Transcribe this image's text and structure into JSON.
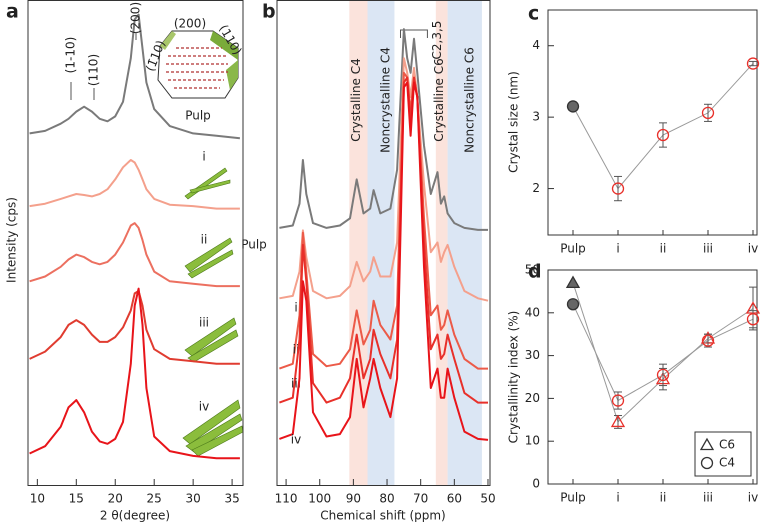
{
  "chart_data": [
    {
      "type": "line",
      "panel": "a",
      "xlabel": "2 θ(degree)",
      "ylabel": "Intensity (cps)",
      "xlim": [
        8.8,
        36.4
      ],
      "xticks": [
        10,
        15,
        20,
        25,
        30,
        35
      ],
      "ylim": [
        0,
        100
      ],
      "x": [
        9,
        11,
        13,
        14,
        15,
        16,
        17,
        18,
        19,
        20,
        21,
        22,
        22.5,
        23,
        23.5,
        24,
        25,
        27,
        30,
        33,
        36
      ],
      "series": [
        {
          "name": "Pulp",
          "color": "#7a7a7a",
          "values": [
            72.5,
            73,
            74.5,
            75.5,
            77,
            78,
            77,
            75.5,
            75,
            76,
            79,
            88,
            96,
            97,
            90,
            83,
            77.5,
            74,
            72.5,
            72,
            71.5
          ]
        },
        {
          "name": "i",
          "color": "#f4a08c",
          "values": [
            57.5,
            58,
            59,
            59.5,
            60,
            59.8,
            59.5,
            60,
            61,
            63,
            65.5,
            67,
            66.5,
            65,
            63,
            61,
            59,
            57.8,
            57.5,
            57,
            57
          ]
        },
        {
          "name": "ii",
          "color": "#ec7060",
          "values": [
            42,
            43,
            45,
            46.5,
            47.5,
            47,
            46,
            45.5,
            46,
            47.5,
            50,
            53.5,
            54,
            53,
            50.5,
            47.5,
            44,
            42,
            41.5,
            41,
            41
          ]
        },
        {
          "name": "iii",
          "color": "#e03c30",
          "values": [
            26,
            27.5,
            30.5,
            33,
            34,
            33,
            31,
            29.5,
            29.5,
            30.5,
            32.5,
            36,
            39.5,
            40,
            37,
            32,
            28,
            26,
            25.5,
            25,
            25
          ]
        },
        {
          "name": "iv",
          "color": "#e8141a",
          "values": [
            6.5,
            8,
            12,
            16,
            17.5,
            15,
            11,
            9,
            8.5,
            9.5,
            13,
            25,
            37,
            40.5,
            33,
            20,
            10,
            7,
            6,
            5.5,
            5.5
          ]
        }
      ],
      "annotations": [
        "(1-10)",
        "(110)",
        "(200)"
      ],
      "inset_labels": [
        "(200)",
        "(1̄10)",
        "(110)"
      ]
    },
    {
      "type": "line",
      "panel": "b",
      "xlabel": "Chemical shift (ppm)",
      "xlim": [
        112.7,
        49.4
      ],
      "xticks": [
        110,
        100,
        90,
        80,
        70,
        60,
        50
      ],
      "ylim": [
        0,
        100
      ],
      "x": [
        112,
        108,
        106,
        105,
        104,
        102,
        98,
        94,
        91,
        89,
        87,
        85,
        84,
        82,
        79,
        77,
        75,
        74,
        73,
        72,
        71,
        69,
        67,
        65,
        64,
        63,
        62,
        60,
        57,
        53,
        50
      ],
      "series": [
        {
          "name": "Pulp",
          "color": "#7a7a7a",
          "values": [
            53,
            53.5,
            58,
            67,
            60,
            54,
            53,
            53.5,
            55,
            63,
            56,
            57,
            60.8,
            56,
            57,
            65,
            94,
            88,
            85,
            92,
            85,
            70,
            60,
            64.5,
            58,
            59.5,
            56,
            54,
            53,
            52.6,
            52.6
          ]
        },
        {
          "name": "i",
          "color": "#f4a08c",
          "values": [
            38.5,
            39,
            44,
            52.5,
            47,
            40,
            38.5,
            39,
            41,
            46,
            42,
            44,
            47,
            43,
            43,
            50,
            88,
            85,
            80,
            86,
            80,
            62,
            48,
            50,
            46,
            48,
            49.5,
            45,
            40,
            38.5,
            38
          ]
        },
        {
          "name": "ii",
          "color": "#ec5a48",
          "values": [
            24,
            25,
            35,
            52,
            44,
            27,
            24.5,
            25,
            28,
            36,
            29,
            32,
            38,
            33,
            30,
            37,
            85,
            84,
            77,
            84,
            80,
            55,
            35,
            37,
            32,
            33,
            36,
            31,
            26,
            24,
            24
          ]
        },
        {
          "name": "iii",
          "color": "#e8302a",
          "values": [
            17,
            18,
            30,
            49.5,
            42,
            21,
            17,
            18,
            22,
            31,
            22,
            26,
            32,
            27,
            22,
            30,
            83,
            84,
            75,
            84,
            80,
            50,
            28,
            31,
            26,
            27,
            31,
            26,
            19,
            17,
            17
          ]
        },
        {
          "name": "iv",
          "color": "#e8141a",
          "values": [
            9.5,
            10.5,
            22,
            42,
            38,
            15,
            10,
            10.5,
            14,
            26,
            16,
            22,
            26,
            20,
            14,
            22,
            82,
            83,
            72,
            83,
            80,
            45,
            20,
            24,
            18,
            18,
            24,
            18,
            11,
            9.5,
            9.3
          ]
        }
      ],
      "bands": [
        {
          "label": "Crystalline C4",
          "range": [
            91.2,
            85.8
          ],
          "color": "#fbe3dc",
          "text_color": "#e0302a"
        },
        {
          "label": "Noncrystalline C4",
          "range": [
            85.8,
            77.8
          ],
          "color": "#dbe6f4",
          "text_color": "#2233cc"
        },
        {
          "label": "Crystalline C6",
          "range": [
            65.5,
            62
          ],
          "color": "#fbe3dc",
          "text_color": "#e0302a"
        },
        {
          "label": "Noncrystalline C6",
          "range": [
            62,
            51.8
          ],
          "color": "#dbe6f4",
          "text_color": "#2233cc"
        }
      ],
      "bracket_label": "C2,3,5",
      "bracket_range": [
        76,
        68
      ]
    },
    {
      "type": "errorbar",
      "panel": "c",
      "ylabel": "Crystal size (nm)",
      "categories": [
        "Pulp",
        "i",
        "ii",
        "iii",
        "iv"
      ],
      "series": [
        {
          "marker": "circle",
          "values": [
            3.15,
            2.0,
            2.75,
            3.06,
            3.75
          ],
          "errors": [
            null,
            0.17,
            0.17,
            0.12,
            0.03
          ]
        }
      ],
      "point_fills": [
        "#666666",
        "none",
        "none",
        "none",
        "none"
      ],
      "point_colors": [
        "#333333",
        "#e8302a",
        "#e8302a",
        "#e8302a",
        "#e8302a"
      ],
      "line_color": "#999999",
      "ylim": [
        1.35,
        4.5
      ],
      "yticks": [
        2,
        3,
        4
      ]
    },
    {
      "type": "errorbar",
      "panel": "d",
      "ylabel": "Crystallinity index (%)",
      "categories": [
        "Pulp",
        "i",
        "ii",
        "iii",
        "iv"
      ],
      "series": [
        {
          "name": "C6",
          "marker": "triangle",
          "values": [
            47,
            14.5,
            24.5,
            34,
            41
          ],
          "errors": [
            null,
            1.5,
            2.5,
            1,
            5
          ]
        },
        {
          "name": "C4",
          "marker": "circle",
          "values": [
            42,
            19.5,
            25.5,
            33.5,
            38.5
          ],
          "errors": [
            null,
            2,
            2.5,
            1.5,
            2
          ]
        }
      ],
      "point_fills": [
        "#666666",
        "none",
        "none",
        "none",
        "none"
      ],
      "point_colors": [
        "#333333",
        "#e8302a",
        "#e8302a",
        "#e8302a",
        "#e8302a"
      ],
      "line_color": "#999999",
      "ylim": [
        0,
        50
      ],
      "yticks": [
        0,
        10,
        20,
        30,
        40,
        50
      ],
      "legend": "lower right",
      "legend_color": "#333333"
    }
  ]
}
